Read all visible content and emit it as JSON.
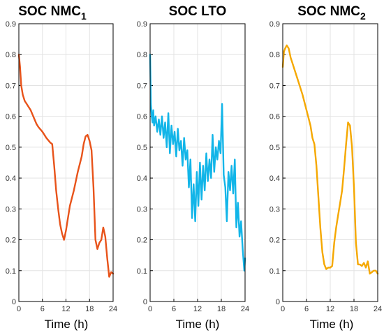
{
  "chart_data": [
    {
      "type": "line",
      "title": "SOC NMC",
      "title_sub": "1",
      "xlabel": "Time (h)",
      "ylabel": "",
      "xlim": [
        0,
        24
      ],
      "ylim": [
        0,
        0.9
      ],
      "xticks": [
        0,
        6,
        12,
        18,
        24
      ],
      "yticks": [
        0,
        0.1,
        0.2,
        0.3,
        0.4,
        0.5,
        0.6,
        0.7,
        0.8,
        0.9
      ],
      "grid": true,
      "color": "#E8531A",
      "series": [
        {
          "x": [
            0,
            0.3,
            0.6,
            1,
            1.5,
            2,
            3,
            4,
            4.5,
            5,
            6,
            7,
            8,
            8.5,
            9,
            9.5,
            10,
            10.5,
            11,
            11.5,
            12,
            12.5,
            13,
            14,
            15,
            16,
            16.5,
            17,
            17.5,
            18,
            18.5,
            19,
            19.5,
            20,
            20.5,
            21,
            21.5,
            22,
            22.5,
            23,
            23.5,
            24
          ],
          "y": [
            0.8,
            0.76,
            0.7,
            0.67,
            0.65,
            0.64,
            0.62,
            0.59,
            0.575,
            0.565,
            0.55,
            0.53,
            0.515,
            0.51,
            0.44,
            0.36,
            0.3,
            0.25,
            0.22,
            0.2,
            0.23,
            0.27,
            0.31,
            0.36,
            0.42,
            0.47,
            0.51,
            0.535,
            0.54,
            0.52,
            0.49,
            0.37,
            0.2,
            0.17,
            0.19,
            0.2,
            0.24,
            0.21,
            0.14,
            0.08,
            0.095,
            0.09
          ]
        }
      ]
    },
    {
      "type": "line",
      "title": "SOC LTO",
      "title_sub": "",
      "xlabel": "Time (h)",
      "ylabel": "",
      "xlim": [
        0,
        24
      ],
      "ylim": [
        0,
        0.9
      ],
      "xticks": [
        0,
        6,
        12,
        18,
        24
      ],
      "yticks": [
        0,
        0.1,
        0.2,
        0.3,
        0.4,
        0.5,
        0.6,
        0.7,
        0.8,
        0.9
      ],
      "grid": true,
      "color": "#12B5E8",
      "series": [
        {
          "x": [
            0,
            0.2,
            0.4,
            0.6,
            0.8,
            1,
            1.4,
            1.8,
            2.2,
            2.6,
            3,
            3.4,
            3.8,
            4.2,
            4.6,
            5,
            5.4,
            5.8,
            6.2,
            6.6,
            7,
            7.4,
            7.8,
            8.2,
            8.6,
            9,
            9.4,
            9.8,
            10.2,
            10.6,
            11,
            11.4,
            11.8,
            12.2,
            12.6,
            13,
            13.4,
            13.8,
            14.2,
            14.6,
            15,
            15.4,
            15.8,
            16.2,
            16.6,
            17,
            17.4,
            17.8,
            18.2,
            18.6,
            19,
            19.4,
            19.8,
            20.2,
            20.6,
            21,
            21.4,
            21.8,
            22.2,
            22.6,
            23,
            23.4,
            23.8,
            24
          ],
          "y": [
            0.8,
            0.64,
            0.6,
            0.58,
            0.62,
            0.57,
            0.6,
            0.55,
            0.59,
            0.54,
            0.6,
            0.53,
            0.58,
            0.5,
            0.61,
            0.48,
            0.57,
            0.51,
            0.55,
            0.47,
            0.56,
            0.49,
            0.52,
            0.44,
            0.53,
            0.46,
            0.49,
            0.37,
            0.46,
            0.27,
            0.38,
            0.26,
            0.42,
            0.31,
            0.45,
            0.33,
            0.44,
            0.36,
            0.48,
            0.39,
            0.46,
            0.4,
            0.54,
            0.42,
            0.5,
            0.46,
            0.52,
            0.48,
            0.64,
            0.41,
            0.37,
            0.26,
            0.42,
            0.36,
            0.44,
            0.35,
            0.46,
            0.24,
            0.32,
            0.21,
            0.26,
            0.17,
            0.1,
            0.14
          ]
        }
      ]
    },
    {
      "type": "line",
      "title": "SOC NMC",
      "title_sub": "2",
      "xlabel": "Time (h)",
      "ylabel": "",
      "xlim": [
        0,
        24
      ],
      "ylim": [
        0,
        0.9
      ],
      "xticks": [
        0,
        6,
        12,
        18,
        24
      ],
      "yticks": [
        0,
        0.1,
        0.2,
        0.3,
        0.4,
        0.5,
        0.6,
        0.7,
        0.8,
        0.9
      ],
      "grid": true,
      "color": "#F5A800",
      "series": [
        {
          "x": [
            0,
            0.3,
            0.6,
            1,
            1.5,
            2,
            2.5,
            3,
            4,
            5,
            6,
            7,
            7.5,
            8,
            8.5,
            9,
            9.5,
            10,
            10.5,
            11,
            11.5,
            12,
            12.5,
            13,
            13.5,
            14,
            14.5,
            15,
            15.5,
            16,
            16.5,
            17,
            17.5,
            18,
            18.5,
            19,
            19.5,
            20,
            20.5,
            21,
            21.5,
            22,
            22.5,
            23,
            23.5,
            24
          ],
          "y": [
            0.76,
            0.81,
            0.82,
            0.83,
            0.82,
            0.79,
            0.77,
            0.75,
            0.71,
            0.67,
            0.62,
            0.57,
            0.53,
            0.51,
            0.44,
            0.34,
            0.24,
            0.16,
            0.12,
            0.105,
            0.11,
            0.11,
            0.115,
            0.19,
            0.24,
            0.28,
            0.32,
            0.36,
            0.43,
            0.51,
            0.58,
            0.57,
            0.5,
            0.37,
            0.19,
            0.12,
            0.12,
            0.115,
            0.125,
            0.11,
            0.13,
            0.09,
            0.095,
            0.1,
            0.1,
            0.09
          ]
        }
      ]
    }
  ]
}
